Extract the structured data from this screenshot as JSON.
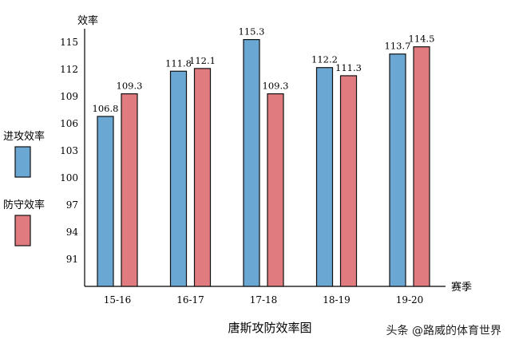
{
  "chart_data": {
    "type": "bar",
    "title": "唐斯攻防效率图",
    "xlabel": "赛季",
    "ylabel": "效率",
    "categories": [
      "15-16",
      "16-17",
      "17-18",
      "18-19",
      "19-20"
    ],
    "series": [
      {
        "name": "进攻效率",
        "values": [
          106.8,
          111.8,
          115.3,
          112.2,
          113.7
        ],
        "color": "#6aa7d3"
      },
      {
        "name": "防守效率",
        "values": [
          109.3,
          112.1,
          109.3,
          111.3,
          114.5
        ],
        "color": "#e07b80"
      }
    ],
    "yticks": [
      91,
      94,
      97,
      100,
      103,
      106,
      109,
      112,
      115
    ],
    "ylim": [
      88,
      116.5
    ],
    "data_labels": true,
    "grid": false,
    "legend": "left"
  },
  "watermark": "头条 @路威的体育世界"
}
